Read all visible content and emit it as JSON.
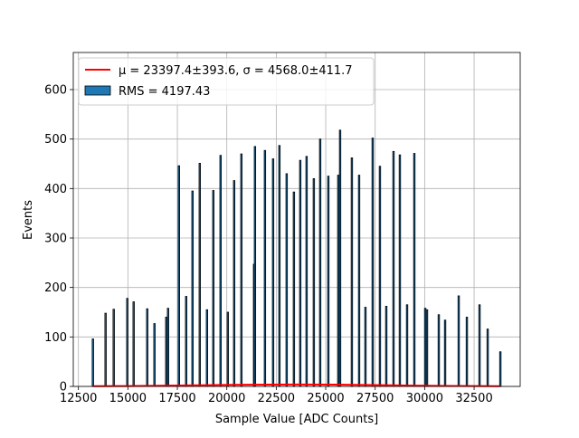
{
  "chart_data": {
    "type": "bar",
    "xlabel": "Sample Value [ADC Counts]",
    "ylabel": "Events",
    "x": [
      13232,
      13873,
      14285,
      14971,
      15292,
      15978,
      16344,
      16939,
      17031,
      17580,
      17946,
      18267,
      18633,
      18999,
      19319,
      19685,
      20051,
      20372,
      20738,
      21379,
      21424,
      21928,
      22340,
      22660,
      23026,
      23392,
      23713,
      24033,
      24399,
      24720,
      25132,
      25635,
      25727,
      26322,
      26688,
      27008,
      27374,
      27740,
      28061,
      28427,
      28747,
      29113,
      29479,
      30029,
      30120,
      30715,
      31035,
      31722,
      32134,
      32775,
      33186,
      33827
    ],
    "series": [
      {
        "name": "RMS = 4197.43",
        "color": "#1f77b4",
        "values": [
          96,
          148,
          156,
          178,
          171,
          157,
          127,
          140,
          158,
          446,
          182,
          395,
          451,
          155,
          396,
          467,
          150,
          416,
          470,
          247,
          485,
          477,
          460,
          487,
          430,
          393,
          457,
          465,
          420,
          500,
          425,
          427,
          518,
          462,
          427,
          160,
          502,
          445,
          162,
          475,
          468,
          165,
          471,
          158,
          155,
          145,
          134,
          183,
          140,
          165,
          116,
          70
        ]
      },
      {
        "name": "μ = 23397.4±393.6, σ = 4568.0±411.7",
        "color": "#ff0000",
        "type": "line",
        "x": [
          13232,
          15000,
          17000,
          19000,
          21000,
          23400,
          25500,
          27500,
          29500,
          31500,
          33827
        ],
        "values": [
          0.4,
          0.8,
          1.6,
          2.6,
          3.5,
          4,
          3.6,
          2.7,
          1.7,
          0.9,
          0.4
        ]
      }
    ],
    "xlim": [
      12240,
      34830
    ],
    "ylim": [
      0,
      675
    ],
    "xticks": [
      12500,
      15000,
      17500,
      20000,
      22500,
      25000,
      27500,
      30000,
      32500
    ],
    "yticks": [
      0,
      100,
      200,
      300,
      400,
      500,
      600
    ],
    "grid": true,
    "legend": "upper left"
  }
}
